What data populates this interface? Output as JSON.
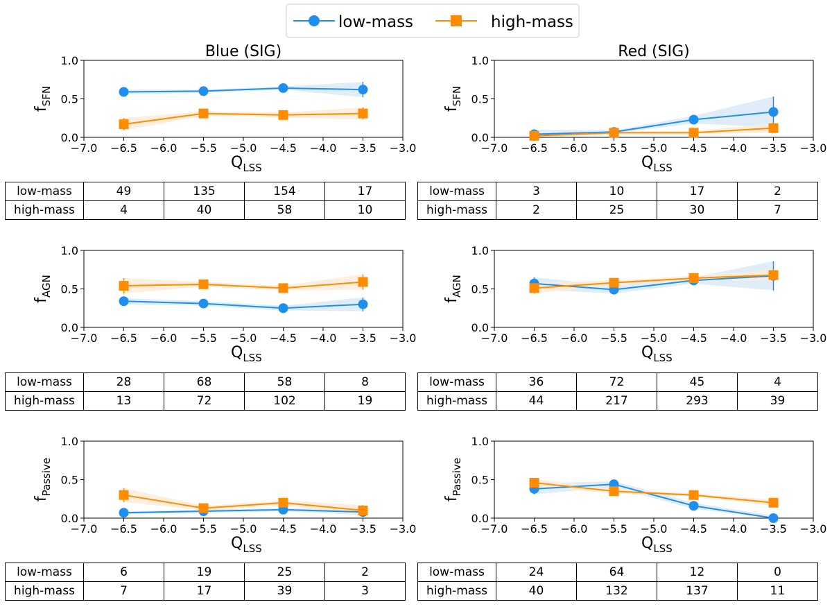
{
  "legend": {
    "entries": [
      "low-mass",
      "high-mass"
    ]
  },
  "colors": {
    "low": "#1f8fef",
    "high": "#ff8c00",
    "low_band": "#dbeaf8",
    "high_band": "#fdebd8"
  },
  "chart_data": [
    {
      "id": "blue-sfn",
      "type": "line",
      "title": "Blue (SIG)",
      "ylabel_base": "f",
      "ylabel_sub": "SFN",
      "xlabel_base": "Q",
      "xlabel_sub": "LSS",
      "x": [
        -6.5,
        -5.5,
        -4.5,
        -3.5
      ],
      "xlim": [
        -7.0,
        -3.0
      ],
      "ylim": [
        0.0,
        1.0
      ],
      "xticks": [
        "−7.0",
        "−6.5",
        "−6.0",
        "−5.5",
        "−5.0",
        "−4.5",
        "−4.0",
        "−3.5",
        "−3.0"
      ],
      "yticks": [
        "0.0",
        "0.5",
        "1.0"
      ],
      "series": [
        {
          "name": "low-mass",
          "values": [
            0.59,
            0.6,
            0.64,
            0.62
          ],
          "err": [
            0.03,
            0.02,
            0.02,
            0.1
          ]
        },
        {
          "name": "high-mass",
          "values": [
            0.17,
            0.31,
            0.29,
            0.31
          ],
          "err": [
            0.08,
            0.03,
            0.03,
            0.08
          ]
        }
      ],
      "table": {
        "rows": [
          {
            "label": "low-mass",
            "cells": [
              "49",
              "135",
              "154",
              "17"
            ]
          },
          {
            "label": "high-mass",
            "cells": [
              "4",
              "40",
              "58",
              "10"
            ]
          }
        ]
      }
    },
    {
      "id": "red-sfn",
      "type": "line",
      "title": "Red (SIG)",
      "ylabel_base": "f",
      "ylabel_sub": "SFN",
      "xlabel_base": "Q",
      "xlabel_sub": "LSS",
      "x": [
        -6.5,
        -5.5,
        -4.5,
        -3.5
      ],
      "xlim": [
        -7.0,
        -3.0
      ],
      "ylim": [
        0.0,
        1.0
      ],
      "xticks": [
        "−7.0",
        "−6.5",
        "−6.0",
        "−5.5",
        "−5.0",
        "−4.5",
        "−4.0",
        "−3.5",
        "−3.0"
      ],
      "yticks": [
        "0.0",
        "0.5",
        "1.0"
      ],
      "series": [
        {
          "name": "low-mass",
          "values": [
            0.04,
            0.07,
            0.23,
            0.33
          ],
          "err": [
            0.06,
            0.02,
            0.05,
            0.2
          ]
        },
        {
          "name": "high-mass",
          "values": [
            0.02,
            0.06,
            0.06,
            0.12
          ],
          "err": [
            0.03,
            0.02,
            0.02,
            0.06
          ]
        }
      ],
      "table": {
        "rows": [
          {
            "label": "low-mass",
            "cells": [
              "3",
              "10",
              "17",
              "2"
            ]
          },
          {
            "label": "high-mass",
            "cells": [
              "2",
              "25",
              "30",
              "7"
            ]
          }
        ]
      }
    },
    {
      "id": "blue-agn",
      "type": "line",
      "title": "",
      "ylabel_base": "f",
      "ylabel_sub": "AGN",
      "xlabel_base": "Q",
      "xlabel_sub": "LSS",
      "x": [
        -6.5,
        -5.5,
        -4.5,
        -3.5
      ],
      "xlim": [
        -7.0,
        -3.0
      ],
      "ylim": [
        0.0,
        1.0
      ],
      "xticks": [
        "−7.0",
        "−6.5",
        "−6.0",
        "−5.5",
        "−5.0",
        "−4.5",
        "−4.0",
        "−3.5",
        "−3.0"
      ],
      "yticks": [
        "0.0",
        "0.5",
        "1.0"
      ],
      "series": [
        {
          "name": "low-mass",
          "values": [
            0.34,
            0.31,
            0.25,
            0.3
          ],
          "err": [
            0.04,
            0.03,
            0.03,
            0.09
          ]
        },
        {
          "name": "high-mass",
          "values": [
            0.54,
            0.56,
            0.51,
            0.59
          ],
          "err": [
            0.1,
            0.03,
            0.03,
            0.1
          ]
        }
      ],
      "table": {
        "rows": [
          {
            "label": "low-mass",
            "cells": [
              "28",
              "68",
              "58",
              "8"
            ]
          },
          {
            "label": "high-mass",
            "cells": [
              "13",
              "72",
              "102",
              "19"
            ]
          }
        ]
      }
    },
    {
      "id": "red-agn",
      "type": "line",
      "title": "",
      "ylabel_base": "f",
      "ylabel_sub": "AGN",
      "xlabel_base": "Q",
      "xlabel_sub": "LSS",
      "x": [
        -6.5,
        -5.5,
        -4.5,
        -3.5
      ],
      "xlim": [
        -7.0,
        -3.0
      ],
      "ylim": [
        0.0,
        1.0
      ],
      "xticks": [
        "−7.0",
        "−6.5",
        "−6.0",
        "−5.5",
        "−5.0",
        "−4.5",
        "−4.0",
        "−3.5",
        "−3.0"
      ],
      "yticks": [
        "0.0",
        "0.5",
        "1.0"
      ],
      "series": [
        {
          "name": "low-mass",
          "values": [
            0.57,
            0.49,
            0.61,
            0.67
          ],
          "err": [
            0.08,
            0.05,
            0.04,
            0.19
          ]
        },
        {
          "name": "high-mass",
          "values": [
            0.51,
            0.58,
            0.64,
            0.68
          ],
          "err": [
            0.07,
            0.03,
            0.03,
            0.07
          ]
        }
      ],
      "table": {
        "rows": [
          {
            "label": "low-mass",
            "cells": [
              "36",
              "72",
              "45",
              "4"
            ]
          },
          {
            "label": "high-mass",
            "cells": [
              "44",
              "217",
              "293",
              "39"
            ]
          }
        ]
      }
    },
    {
      "id": "blue-passive",
      "type": "line",
      "title": "",
      "ylabel_base": "f",
      "ylabel_sub": "Passive",
      "xlabel_base": "Q",
      "xlabel_sub": "LSS",
      "x": [
        -6.5,
        -5.5,
        -4.5,
        -3.5
      ],
      "xlim": [
        -7.0,
        -3.0
      ],
      "ylim": [
        0.0,
        1.0
      ],
      "xticks": [
        "−7.0",
        "−6.5",
        "−6.0",
        "−5.5",
        "−5.0",
        "−4.5",
        "−4.0",
        "−3.5",
        "−3.0"
      ],
      "yticks": [
        "0.0",
        "0.5",
        "1.0"
      ],
      "series": [
        {
          "name": "low-mass",
          "values": [
            0.07,
            0.09,
            0.11,
            0.08
          ],
          "err": [
            0.02,
            0.02,
            0.02,
            0.04
          ]
        },
        {
          "name": "high-mass",
          "values": [
            0.3,
            0.13,
            0.2,
            0.1
          ],
          "err": [
            0.09,
            0.03,
            0.03,
            0.07
          ]
        }
      ],
      "table": {
        "rows": [
          {
            "label": "low-mass",
            "cells": [
              "6",
              "19",
              "25",
              "2"
            ]
          },
          {
            "label": "high-mass",
            "cells": [
              "7",
              "17",
              "39",
              "3"
            ]
          }
        ]
      }
    },
    {
      "id": "red-passive",
      "type": "line",
      "title": "",
      "ylabel_base": "f",
      "ylabel_sub": "Passive",
      "xlabel_base": "Q",
      "xlabel_sub": "LSS",
      "x": [
        -6.5,
        -5.5,
        -4.5,
        -3.5
      ],
      "xlim": [
        -7.0,
        -3.0
      ],
      "ylim": [
        0.0,
        1.0
      ],
      "xticks": [
        "−7.0",
        "−6.5",
        "−6.0",
        "−5.5",
        "−5.0",
        "−4.5",
        "−4.0",
        "−3.5",
        "−3.0"
      ],
      "yticks": [
        "0.0",
        "0.5",
        "1.0"
      ],
      "series": [
        {
          "name": "low-mass",
          "values": [
            0.38,
            0.44,
            0.16,
            0.0
          ],
          "err": [
            0.07,
            0.04,
            0.04,
            0.03
          ]
        },
        {
          "name": "high-mass",
          "values": [
            0.46,
            0.35,
            0.3,
            0.2
          ],
          "err": [
            0.05,
            0.03,
            0.02,
            0.04
          ]
        }
      ],
      "table": {
        "rows": [
          {
            "label": "low-mass",
            "cells": [
              "24",
              "64",
              "12",
              "0"
            ]
          },
          {
            "label": "high-mass",
            "cells": [
              "40",
              "132",
              "137",
              "11"
            ]
          }
        ]
      }
    }
  ]
}
